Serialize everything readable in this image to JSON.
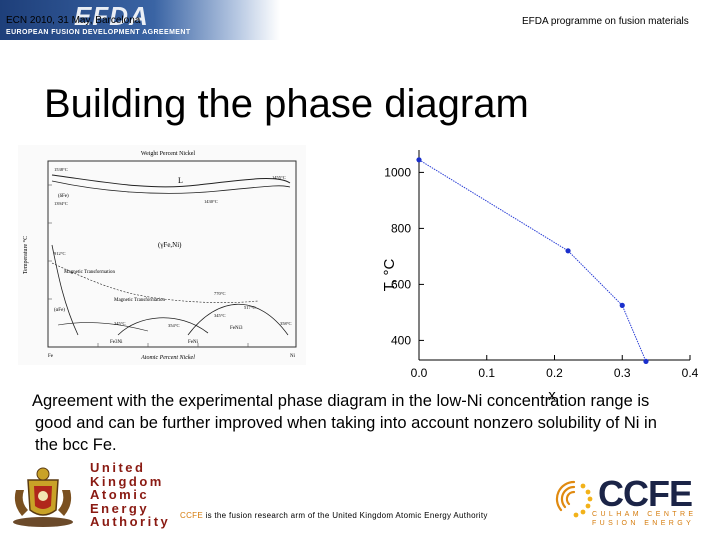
{
  "header": {
    "banner_logo": "EFDA",
    "banner_subtitle": "EUROPEAN FUSION DEVELOPMENT AGREEMENT",
    "meeting": "ECN 2010, 31 May, Barcelona",
    "programme": "EFDA programme on fusion materials"
  },
  "title": "Building the phase diagram",
  "phase_diagram": {
    "top_axis_label": "Weight Percent Nickel",
    "bottom_axis_label": "Atomic Percent Nickel",
    "y_axis_label": "Temperature °C",
    "element_left": "Fe",
    "element_right": "Ni",
    "region_liquid": "L",
    "region_gamma": "(γFe,Ni)",
    "region_delta": "(δFe)",
    "region_alpha": "(αFe)",
    "magnetic_upper": "Magnetic Transformation",
    "magnetic_lower": "Magnetic Transformation",
    "phase_fe3ni": "Fe3Ni",
    "phase_feni": "FeNi",
    "phase_feni3": "FeNi3",
    "temp_top_left": "1538°C",
    "temp_top_right": "1455°C",
    "temp_mid": "1430°C",
    "temp_delta": "1394°C",
    "temp_a": "912°C",
    "temp_b": "770°C",
    "temp_c": "517°C",
    "temp_d": "345°C",
    "temp_e": "354°C",
    "temp_f": "358°C",
    "temp_g": "345°C"
  },
  "chart_data": {
    "type": "line",
    "xlabel": "x",
    "ylabel": "T, °C",
    "xlim": [
      0.0,
      0.4
    ],
    "ylim": [
      330,
      1080
    ],
    "x_ticks": [
      "0.0",
      "0.1",
      "0.2",
      "0.3",
      "0.4"
    ],
    "y_ticks": [
      "400",
      "600",
      "800",
      "1000"
    ],
    "series": [
      {
        "x": [
          0.0,
          0.22,
          0.3,
          0.335
        ],
        "y": [
          1045,
          720,
          525,
          325
        ]
      }
    ],
    "line_color": "#2b3fd6",
    "marker_color": "#1a2fcc"
  },
  "caption": {
    "line1": "Agreement with the experimental phase diagram in the low-Ni concentration range is",
    "line2": "good and can be further improved when taking into account nonzero solubility of Ni in",
    "line3": "the bcc Fe."
  },
  "ukaea": {
    "line1": "United",
    "line2": "Kingdom",
    "line3": "Atomic",
    "line4": "Energy",
    "line5": "Authority"
  },
  "footer": {
    "prefix": "CCFE",
    "text": " is the fusion research arm of the United Kingdom Atomic Energy Authority"
  },
  "ccfe": {
    "logo": "CCFE",
    "sub1": "CULHAM CENTRE",
    "sub2": "FUSION ENERGY",
    "accent": "#d57b0c"
  }
}
